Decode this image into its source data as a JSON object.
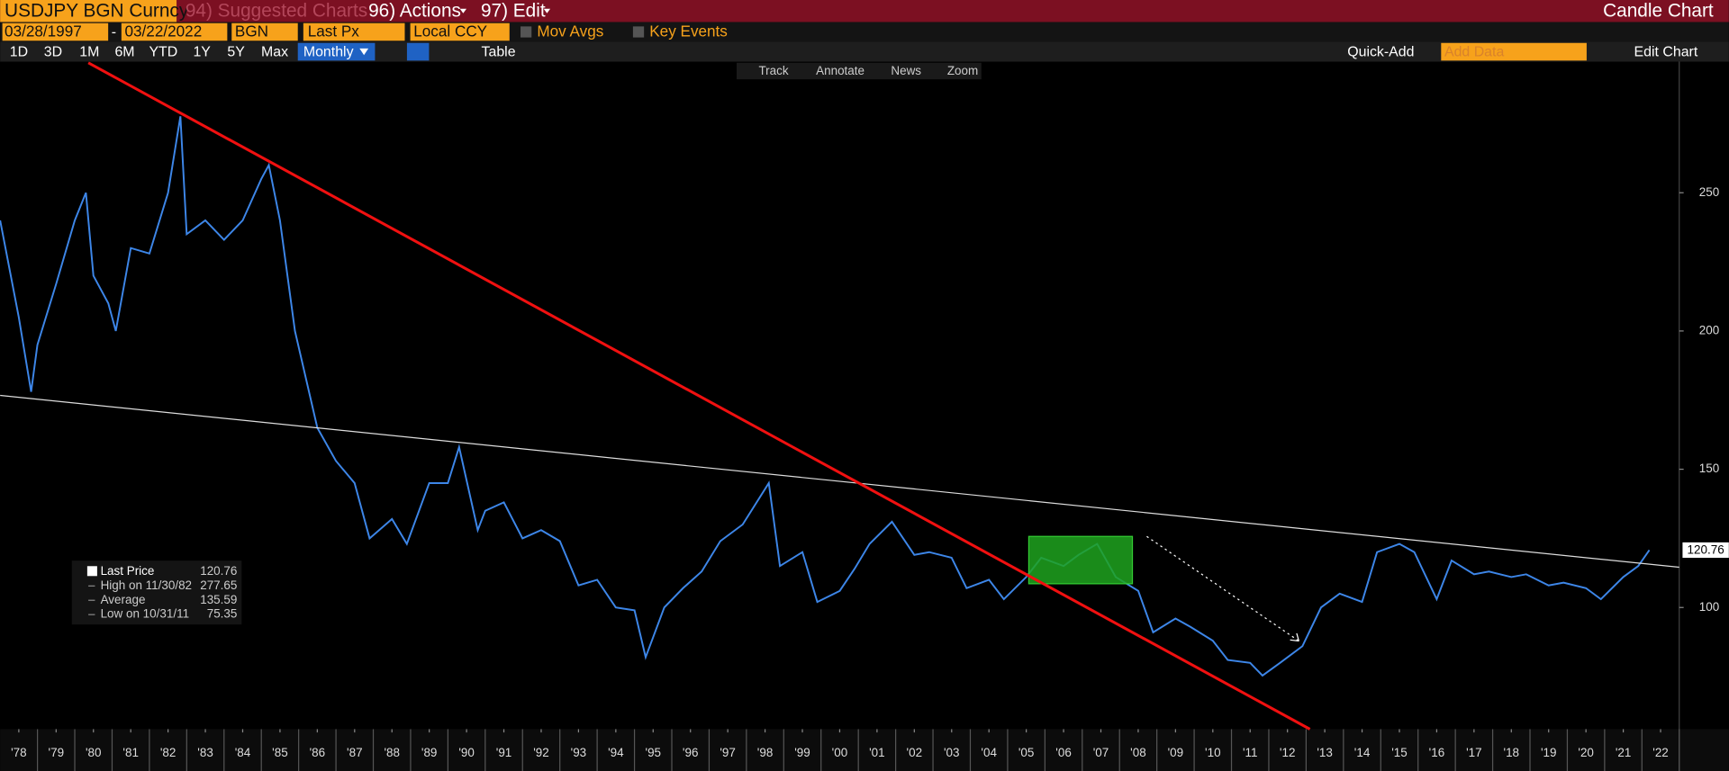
{
  "toolbar": {
    "ticker": "USDJPY BGN Curncy",
    "menu": [
      "94) Suggested Charts",
      "96) Actions",
      "97) Edit"
    ],
    "chart_kind": "Candle Chart",
    "start_date": "03/28/1997",
    "end_date": "03/22/2022",
    "source": "BGN",
    "field": "Last Px",
    "currency": "Local CCY",
    "toggles": [
      "Mov Avgs",
      "Key Events"
    ],
    "periods": [
      "1D",
      "3D",
      "1M",
      "6M",
      "YTD",
      "1Y",
      "5Y",
      "Max"
    ],
    "frequency": "Monthly",
    "table": "Table",
    "quick_add": "Quick-Add",
    "add_data": "Add Data",
    "edit_chart": "Edit Chart",
    "tools": [
      "Track",
      "Annotate",
      "News",
      "Zoom"
    ]
  },
  "stats": [
    {
      "label": "Last Price",
      "value": 120.76
    },
    {
      "label": "High on 11/30/82",
      "value": 277.65
    },
    {
      "label": "Average",
      "value": 135.59
    },
    {
      "label": "Low on 10/31/11",
      "value": 75.35
    }
  ],
  "chart_data": {
    "type": "line",
    "x": [
      1978.0,
      1978.5,
      1978.83,
      1979.0,
      1979.5,
      1980.0,
      1980.3,
      1980.5,
      1980.9,
      1981.1,
      1981.5,
      1982.0,
      1982.5,
      1982.83,
      1983.0,
      1983.5,
      1984.0,
      1984.5,
      1985.0,
      1985.2,
      1985.5,
      1985.9,
      1986.5,
      1987.0,
      1987.5,
      1987.9,
      1988.5,
      1988.9,
      1989.5,
      1990.0,
      1990.3,
      1990.8,
      1991.0,
      1991.5,
      1992.0,
      1992.5,
      1993.0,
      1993.5,
      1994.0,
      1994.5,
      1995.0,
      1995.3,
      1995.8,
      1996.3,
      1996.8,
      1997.3,
      1997.9,
      1998.6,
      1998.9,
      1999.5,
      1999.9,
      2000.5,
      2000.9,
      2001.3,
      2001.9,
      2002.5,
      2002.9,
      2003.5,
      2003.9,
      2004.5,
      2004.9,
      2005.5,
      2005.9,
      2006.5,
      2006.9,
      2007.4,
      2007.9,
      2008.5,
      2008.9,
      2009.5,
      2009.9,
      2010.5,
      2010.9,
      2011.5,
      2011.83,
      2012.3,
      2012.9,
      2013.4,
      2013.9,
      2014.5,
      2014.9,
      2015.5,
      2015.9,
      2016.5,
      2016.9,
      2017.5,
      2017.9,
      2018.5,
      2018.9,
      2019.5,
      2019.9,
      2020.5,
      2020.9,
      2021.5,
      2021.9,
      2022.2
    ],
    "series": [
      {
        "name": "Last Price",
        "color": "#3d86e8",
        "values": [
          240,
          205,
          178,
          195,
          217,
          240,
          250,
          220,
          210,
          200,
          230,
          228,
          250,
          277.65,
          235,
          240,
          233,
          240,
          255,
          260,
          240,
          200,
          165,
          153,
          145,
          125,
          132,
          123,
          145,
          145,
          158,
          128,
          135,
          138,
          125,
          128,
          124,
          108,
          110,
          100,
          99,
          82,
          100,
          107,
          113,
          124,
          130,
          145,
          115,
          120,
          102,
          106,
          114,
          123,
          131,
          119,
          120,
          118,
          107,
          110,
          103,
          111,
          118,
          115,
          119,
          123,
          111,
          106,
          91,
          96,
          93,
          88,
          81,
          80,
          75.35,
          80,
          86,
          100,
          105,
          102,
          120,
          123,
          120,
          103,
          117,
          112,
          113,
          111,
          112,
          108,
          109,
          107,
          103,
          111,
          115,
          120.76
        ]
      }
    ],
    "xlim": [
      1978,
      2023
    ],
    "ylim": [
      56,
      297
    ],
    "yticks": [
      100,
      150,
      200,
      250
    ],
    "xticks": [
      {
        "value": 1978.5,
        "label": "'78"
      },
      {
        "value": 1979.5,
        "label": "'79"
      },
      {
        "value": 1980.5,
        "label": "'80"
      },
      {
        "value": 1981.5,
        "label": "'81"
      },
      {
        "value": 1982.5,
        "label": "'82"
      },
      {
        "value": 1983.5,
        "label": "'83"
      },
      {
        "value": 1984.5,
        "label": "'84"
      },
      {
        "value": 1985.5,
        "label": "'85"
      },
      {
        "value": 1986.5,
        "label": "'86"
      },
      {
        "value": 1987.5,
        "label": "'87"
      },
      {
        "value": 1988.5,
        "label": "'88"
      },
      {
        "value": 1989.5,
        "label": "'89"
      },
      {
        "value": 1990.5,
        "label": "'90"
      },
      {
        "value": 1991.5,
        "label": "'91"
      },
      {
        "value": 1992.5,
        "label": "'92"
      },
      {
        "value": 1993.5,
        "label": "'93"
      },
      {
        "value": 1994.5,
        "label": "'94"
      },
      {
        "value": 1995.5,
        "label": "'95"
      },
      {
        "value": 1996.5,
        "label": "'96"
      },
      {
        "value": 1997.5,
        "label": "'97"
      },
      {
        "value": 1998.5,
        "label": "'98"
      },
      {
        "value": 1999.5,
        "label": "'99"
      },
      {
        "value": 2000.5,
        "label": "'00"
      },
      {
        "value": 2001.5,
        "label": "'01"
      },
      {
        "value": 2002.5,
        "label": "'02"
      },
      {
        "value": 2003.5,
        "label": "'03"
      },
      {
        "value": 2004.5,
        "label": "'04"
      },
      {
        "value": 2005.5,
        "label": "'05"
      },
      {
        "value": 2006.5,
        "label": "'06"
      },
      {
        "value": 2007.5,
        "label": "'07"
      },
      {
        "value": 2008.5,
        "label": "'08"
      },
      {
        "value": 2009.5,
        "label": "'09"
      },
      {
        "value": 2010.5,
        "label": "'10"
      },
      {
        "value": 2011.5,
        "label": "'11"
      },
      {
        "value": 2012.5,
        "label": "'12"
      },
      {
        "value": 2013.5,
        "label": "'13"
      },
      {
        "value": 2014.5,
        "label": "'14"
      },
      {
        "value": 2015.5,
        "label": "'15"
      },
      {
        "value": 2016.5,
        "label": "'16"
      },
      {
        "value": 2017.5,
        "label": "'17"
      },
      {
        "value": 2018.5,
        "label": "'18"
      },
      {
        "value": 2019.5,
        "label": "'19"
      },
      {
        "value": 2020.5,
        "label": "'20"
      },
      {
        "value": 2021.5,
        "label": "'21"
      },
      {
        "value": 2022.5,
        "label": "'22"
      }
    ],
    "grid": false
  }
}
